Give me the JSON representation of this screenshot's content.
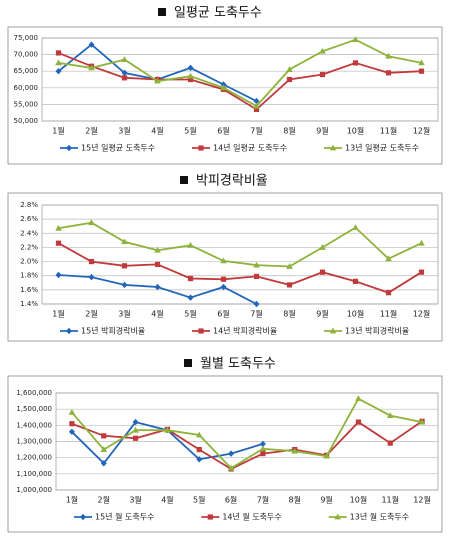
{
  "chart_data": [
    {
      "type": "line",
      "title": "일평균 도축두수",
      "categories": [
        "1월",
        "2월",
        "3월",
        "4월",
        "5월",
        "6월",
        "7월",
        "8월",
        "9월",
        "10월",
        "11월",
        "12월"
      ],
      "series": [
        {
          "name": "15년 일평균 도축두수",
          "color": "#2266bb",
          "marker": "diamond",
          "values": [
            65000,
            73000,
            64500,
            62500,
            66000,
            61000,
            56000,
            null,
            null,
            null,
            null,
            null
          ]
        },
        {
          "name": "14년 일평균 도축두수",
          "color": "#c0393b",
          "marker": "square",
          "values": [
            70500,
            66500,
            63000,
            62500,
            62500,
            59500,
            53500,
            62500,
            64000,
            67500,
            64500,
            65000
          ]
        },
        {
          "name": "13년 일평균 도축두수",
          "color": "#8db33a",
          "marker": "triangle",
          "values": [
            67500,
            66000,
            68500,
            62000,
            63500,
            60000,
            54500,
            65500,
            71000,
            74500,
            69500,
            67500
          ]
        }
      ],
      "ylim": [
        50000,
        75000
      ],
      "yticks": [
        {
          "value": 50000,
          "label": "50,000"
        },
        {
          "value": 55000,
          "label": "55,000"
        },
        {
          "value": 60000,
          "label": "60,000"
        },
        {
          "value": 65000,
          "label": "65,000"
        },
        {
          "value": 70000,
          "label": "70,000"
        },
        {
          "value": 75000,
          "label": "75,000"
        }
      ],
      "grid": true
    },
    {
      "type": "line",
      "title": "박피경락비율",
      "categories": [
        "1월",
        "2월",
        "3월",
        "4월",
        "5월",
        "6월",
        "7월",
        "8월",
        "9월",
        "10월",
        "11월",
        "12월"
      ],
      "series": [
        {
          "name": "15년 박피경락비율",
          "color": "#2266bb",
          "marker": "diamond",
          "values": [
            1.81,
            1.78,
            1.67,
            1.64,
            1.49,
            1.64,
            1.4,
            null,
            null,
            null,
            null,
            null
          ]
        },
        {
          "name": "14년 박피경락비율",
          "color": "#c0393b",
          "marker": "square",
          "values": [
            2.26,
            2.0,
            1.94,
            1.96,
            1.76,
            1.75,
            1.79,
            1.67,
            1.85,
            1.72,
            1.56,
            1.85
          ]
        },
        {
          "name": "13년 박피경락비율",
          "color": "#8db33a",
          "marker": "triangle",
          "values": [
            2.47,
            2.55,
            2.28,
            2.16,
            2.23,
            2.01,
            1.95,
            1.93,
            2.2,
            2.48,
            2.04,
            2.26
          ]
        }
      ],
      "ylim": [
        1.4,
        2.8
      ],
      "yticks": [
        {
          "value": 1.4,
          "label": "1.4%"
        },
        {
          "value": 1.6,
          "label": "1.6%"
        },
        {
          "value": 1.8,
          "label": "1.8%"
        },
        {
          "value": 2.0,
          "label": "2.0%"
        },
        {
          "value": 2.2,
          "label": "2.2%"
        },
        {
          "value": 2.4,
          "label": "2.4%"
        },
        {
          "value": 2.6,
          "label": "2.6%"
        },
        {
          "value": 2.8,
          "label": "2.8%"
        }
      ],
      "grid": true
    },
    {
      "type": "line",
      "title": "월별 도축두수",
      "categories": [
        "1월",
        "2월",
        "3월",
        "4월",
        "5월",
        "6월",
        "7월",
        "8월",
        "9월",
        "10월",
        "11월",
        "12월"
      ],
      "series": [
        {
          "name": "15년 월 도축두수",
          "color": "#2266bb",
          "marker": "diamond",
          "values": [
            1360000,
            1165000,
            1420000,
            1370000,
            1190000,
            1225000,
            1285000,
            null,
            null,
            null,
            null,
            null
          ]
        },
        {
          "name": "14년 월 도축두수",
          "color": "#c0393b",
          "marker": "square",
          "values": [
            1410000,
            1335000,
            1320000,
            1375000,
            1250000,
            1130000,
            1225000,
            1250000,
            1215000,
            1420000,
            1290000,
            1425000
          ]
        },
        {
          "name": "13년 월 도축두수",
          "color": "#8db33a",
          "marker": "triangle",
          "values": [
            1480000,
            1250000,
            1370000,
            1370000,
            1340000,
            1135000,
            1255000,
            1240000,
            1210000,
            1565000,
            1460000,
            1420000
          ]
        }
      ],
      "ylim": [
        1000000,
        1600000
      ],
      "yticks": [
        {
          "value": 1000000,
          "label": "1,000,000"
        },
        {
          "value": 1100000,
          "label": "1,100,000"
        },
        {
          "value": 1200000,
          "label": "1,200,000"
        },
        {
          "value": 1300000,
          "label": "1,300,000"
        },
        {
          "value": 1400000,
          "label": "1,400,000"
        },
        {
          "value": 1500000,
          "label": "1,500,000"
        },
        {
          "value": 1600000,
          "label": "1,600,000"
        }
      ],
      "grid": true
    }
  ]
}
